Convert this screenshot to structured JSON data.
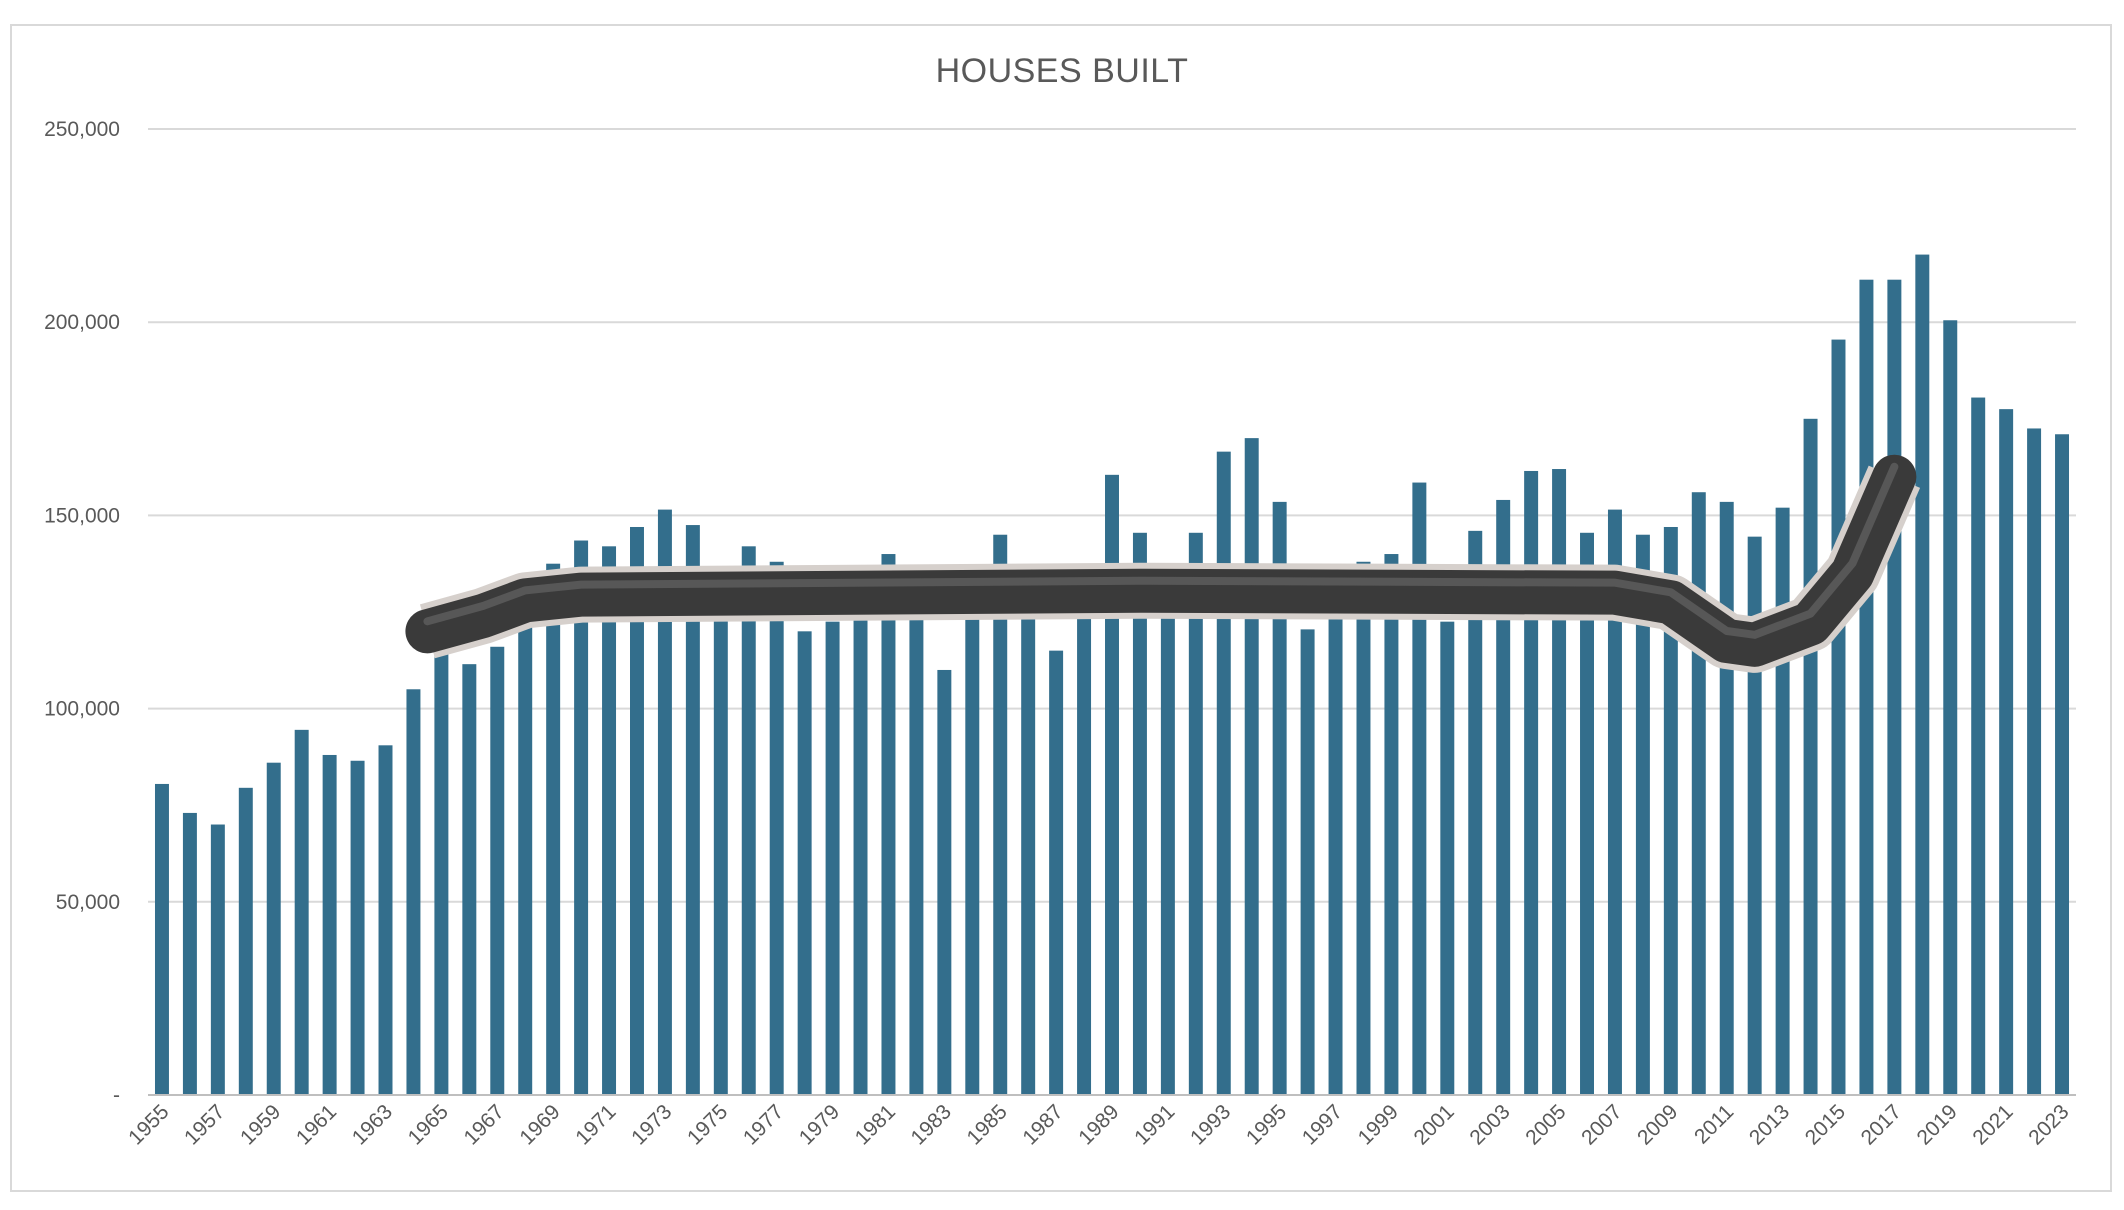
{
  "chart_data": {
    "type": "bar",
    "title": "HOUSES BUILT",
    "xlabel": "",
    "ylabel": "",
    "ylim": [
      0,
      250000
    ],
    "y_ticks": [
      {
        "value": 0,
        "label": "-"
      },
      {
        "value": 50000,
        "label": "50,000"
      },
      {
        "value": 100000,
        "label": "100,000"
      },
      {
        "value": 150000,
        "label": "150,000"
      },
      {
        "value": 200000,
        "label": "200,000"
      },
      {
        "value": 250000,
        "label": "250,000"
      }
    ],
    "categories": [
      "1955",
      "1956",
      "1957",
      "1958",
      "1959",
      "1960",
      "1961",
      "1962",
      "1963",
      "1964",
      "1965",
      "1966",
      "1967",
      "1968",
      "1969",
      "1970",
      "1971",
      "1972",
      "1973",
      "1974",
      "1975",
      "1976",
      "1977",
      "1978",
      "1979",
      "1980",
      "1981",
      "1982",
      "1983",
      "1984",
      "1985",
      "1986",
      "1987",
      "1988",
      "1989",
      "1990",
      "1991",
      "1992",
      "1993",
      "1994",
      "1995",
      "1996",
      "1997",
      "1998",
      "1999",
      "2000",
      "2001",
      "2002",
      "2003",
      "2004",
      "2005",
      "2006",
      "2007",
      "2008",
      "2009",
      "2010",
      "2011",
      "2012",
      "2013",
      "2014",
      "2015",
      "2016",
      "2017",
      "2018",
      "2019",
      "2020",
      "2021",
      "2022",
      "2023"
    ],
    "x_tick_labels": [
      "1955",
      "",
      "1957",
      "",
      "1959",
      "",
      "1961",
      "",
      "1963",
      "",
      "1965",
      "",
      "1967",
      "",
      "1969",
      "",
      "1971",
      "",
      "1973",
      "",
      "1975",
      "",
      "1977",
      "",
      "1979",
      "",
      "1981",
      "",
      "1983",
      "",
      "1985",
      "",
      "1987",
      "",
      "1989",
      "",
      "1991",
      "",
      "1993",
      "",
      "1995",
      "",
      "1997",
      "",
      "1999",
      "",
      "2001",
      "",
      "2003",
      "",
      "2005",
      "",
      "2007",
      "",
      "2009",
      "",
      "2011",
      "",
      "2013",
      "",
      "2015",
      "",
      "2017",
      "",
      "2019",
      "",
      "2021",
      "",
      "2023"
    ],
    "values": [
      80500,
      73000,
      70000,
      79500,
      86000,
      94500,
      88000,
      86500,
      90500,
      105000,
      116000,
      111500,
      116000,
      125500,
      137500,
      143500,
      142000,
      147000,
      151500,
      147500,
      125500,
      142000,
      138000,
      120000,
      122500,
      126000,
      140000,
      126000,
      110000,
      136500,
      145000,
      125000,
      115000,
      125000,
      160500,
      145500,
      125500,
      145500,
      166500,
      170000,
      153500,
      120500,
      126000,
      138000,
      140000,
      158500,
      122500,
      146000,
      154000,
      161500,
      162000,
      145500,
      151500,
      145000,
      147000,
      156000,
      153500,
      144500,
      152000,
      175000,
      195500,
      211000,
      211000,
      217500,
      200500,
      180500,
      177500,
      172500,
      171000
    ],
    "bar_color": "#336e8c",
    "grid": true,
    "legend": "none",
    "overlay": {
      "type": "crowbar-image",
      "color": "#3a3a3a",
      "path_data": [
        [
          1964.5,
          120000
        ],
        [
          1966.5,
          124000
        ],
        [
          1968,
          128000
        ],
        [
          1970,
          129500
        ],
        [
          1990,
          130500
        ],
        [
          2007,
          130000
        ],
        [
          2009,
          127500
        ],
        [
          2011,
          117500
        ],
        [
          2012,
          116500
        ],
        [
          2014,
          122000
        ],
        [
          2015.5,
          135000
        ],
        [
          2017,
          160000
        ]
      ]
    }
  }
}
